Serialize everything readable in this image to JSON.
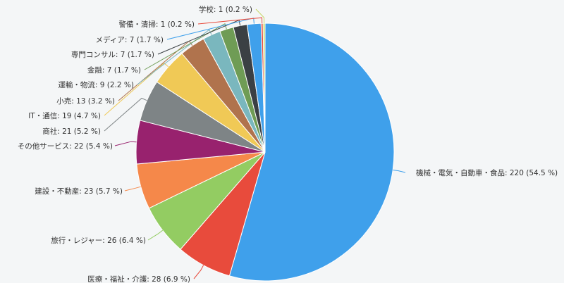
{
  "chart_data": {
    "type": "pie",
    "title": "",
    "unit_separator": " %",
    "series": [
      {
        "name": "",
        "data": [
          {
            "label": "機械・電気・自動車・食品",
            "value": 220,
            "percent": 54.5,
            "display": "機械・電気・自動車・食品: 220 (54.5 %)",
            "color": "#3fa0eb"
          },
          {
            "label": "医療・福祉・介護",
            "value": 28,
            "percent": 6.9,
            "display": "医療・福祉・介護: 28 (6.9 %)",
            "color": "#e84b3c"
          },
          {
            "label": "旅行・レジャー",
            "value": 26,
            "percent": 6.4,
            "display": "旅行・レジャー: 26 (6.4 %)",
            "color": "#93cc62"
          },
          {
            "label": "建設・不動産",
            "value": 23,
            "percent": 5.7,
            "display": "建設・不動産: 23 (5.7 %)",
            "color": "#f5884a"
          },
          {
            "label": "その他サービス",
            "value": 22,
            "percent": 5.4,
            "display": "その他サービス: 22 (5.4 %)",
            "color": "#98226e"
          },
          {
            "label": "商社",
            "value": 21,
            "percent": 5.2,
            "display": "商社: 21 (5.2 %)",
            "color": "#7e8486"
          },
          {
            "label": "IT・通信",
            "value": 19,
            "percent": 4.7,
            "display": "IT・通信: 19 (4.7 %)",
            "color": "#f0c956"
          },
          {
            "label": "小売",
            "value": 13,
            "percent": 3.2,
            "display": "小売: 13 (3.2 %)",
            "color": "#b0734d"
          },
          {
            "label": "運輸・物流",
            "value": 9,
            "percent": 2.2,
            "display": "運輸・物流: 9 (2.2 %)",
            "color": "#7ab7be"
          },
          {
            "label": "金融",
            "value": 7,
            "percent": 1.7,
            "display": "金融: 7 (1.7 %)",
            "color": "#6f9c55"
          },
          {
            "label": "専門コンサル",
            "value": 7,
            "percent": 1.7,
            "display": "専門コンサル: 7 (1.7 %)",
            "color": "#3b4044"
          },
          {
            "label": "メディア",
            "value": 7,
            "percent": 1.7,
            "display": "メディア: 7 (1.7 %)",
            "color": "#3fa0eb"
          },
          {
            "label": "警備・清掃",
            "value": 1,
            "percent": 0.2,
            "display": "警備・清掃: 1 (0.2 %)",
            "color": "#e84b3c"
          },
          {
            "label": "学校",
            "value": 1,
            "percent": 0.2,
            "display": "学校: 1 (0.2 %)",
            "color": "#c8d86a"
          }
        ]
      }
    ],
    "legend": "none",
    "grid": false,
    "start_angle_deg": 0,
    "direction": "clockwise"
  }
}
